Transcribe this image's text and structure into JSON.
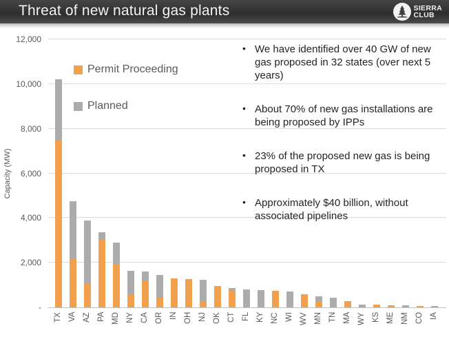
{
  "header": {
    "title": "Threat of new natural gas plants",
    "logo": {
      "line1": "SIERRA",
      "line2": "CLUB"
    }
  },
  "bullets": [
    "We have identified over 40 GW of new gas proposed in 32 states (over next 5 years)",
    "About 70% of new gas installations are being proposed by IPPs",
    "23% of the proposed new gas is being proposed in TX",
    "Approximately $40 billion, without associated pipelines"
  ],
  "chart_data": {
    "type": "bar",
    "stacked": true,
    "ylabel": "Capacity (MW)",
    "ylim": [
      0,
      12000
    ],
    "grid": true,
    "legend_position": "inside-top-left",
    "yticks": [
      {
        "value": 0,
        "label": "-"
      },
      {
        "value": 2000,
        "label": "2,000"
      },
      {
        "value": 4000,
        "label": "4,000"
      },
      {
        "value": 6000,
        "label": "6,000"
      },
      {
        "value": 8000,
        "label": "8,000"
      },
      {
        "value": 10000,
        "label": "10,000"
      },
      {
        "value": 12000,
        "label": "12,000"
      }
    ],
    "categories": [
      "TX",
      "VA",
      "AZ",
      "PA",
      "MD",
      "NY",
      "CA",
      "OR",
      "IN",
      "OH",
      "NJ",
      "OK",
      "CT",
      "FL",
      "KY",
      "NC",
      "WI",
      "WV",
      "MN",
      "TN",
      "MA",
      "WY",
      "KS",
      "ME",
      "NM",
      "CO",
      "IA"
    ],
    "series": [
      {
        "name": "Permit Proceeding",
        "color": "#F1A14E",
        "values": [
          7500,
          2150,
          1050,
          3050,
          1900,
          600,
          1200,
          430,
          1300,
          1270,
          280,
          950,
          750,
          0,
          0,
          740,
          0,
          590,
          280,
          0,
          280,
          0,
          110,
          100,
          0,
          60,
          0
        ]
      },
      {
        "name": "Planned",
        "color": "#ACACAC",
        "values": [
          2700,
          2600,
          2850,
          300,
          1000,
          1050,
          400,
          1020,
          0,
          0,
          960,
          0,
          120,
          800,
          780,
          0,
          710,
          0,
          220,
          430,
          0,
          120,
          0,
          0,
          80,
          0,
          50
        ]
      }
    ]
  },
  "colors": {
    "permit_proceeding": "#F1A14E",
    "planned": "#ACACAC",
    "axis_text": "#595959",
    "gridline": "#DCDCDC",
    "header_background": "#2E2E2E"
  }
}
